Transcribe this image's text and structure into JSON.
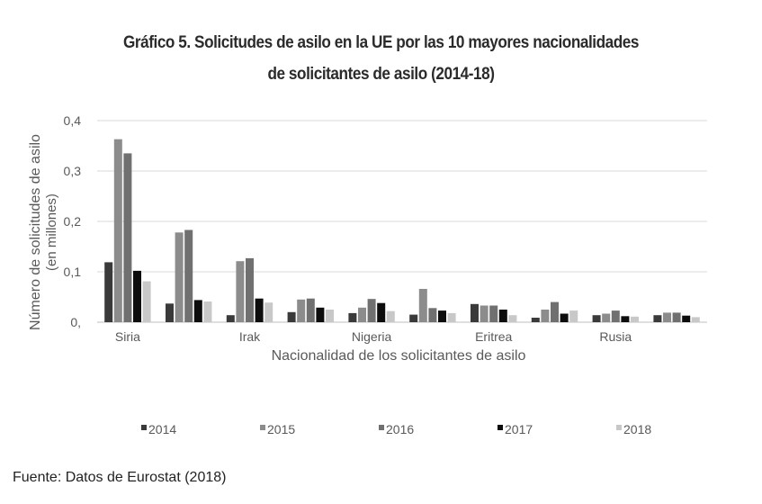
{
  "chart_data": {
    "type": "bar",
    "title_line1": "Gráfico 5. Solicitudes de asilo en la UE por las 10 mayores nacionalidades",
    "title_line2": "de solicitantes de asilo (2014-18)",
    "xlabel": "Nacionalidad de los solicitantes de asilo",
    "ylabel_line1": "Número de solicitudes de asilo",
    "ylabel_line2": "(en millones)",
    "ylim": [
      0,
      0.4
    ],
    "yticks": [
      {
        "value": 0,
        "label": "0,"
      },
      {
        "value": 0.1,
        "label": "0,1"
      },
      {
        "value": 0.2,
        "label": "0,2"
      },
      {
        "value": 0.3,
        "label": "0,3"
      },
      {
        "value": 0.4,
        "label": "0,4"
      }
    ],
    "categories": [
      "Siria",
      "",
      "Irak",
      "",
      "Nigeria",
      "",
      "Eritrea",
      "",
      "Rusia",
      ""
    ],
    "series": [
      {
        "name": "2014",
        "color": "#3a3a3a",
        "values": [
          0.119,
          0.037,
          0.014,
          0.02,
          0.018,
          0.015,
          0.036,
          0.009,
          0.014,
          0.014
        ]
      },
      {
        "name": "2015",
        "color": "#8c8c8c",
        "values": [
          0.363,
          0.178,
          0.121,
          0.045,
          0.029,
          0.066,
          0.033,
          0.025,
          0.017,
          0.019
        ]
      },
      {
        "name": "2016",
        "color": "#707070",
        "values": [
          0.335,
          0.183,
          0.127,
          0.047,
          0.046,
          0.028,
          0.033,
          0.04,
          0.023,
          0.019
        ]
      },
      {
        "name": "2017",
        "color": "#0d0d0d",
        "values": [
          0.102,
          0.044,
          0.047,
          0.029,
          0.038,
          0.023,
          0.025,
          0.017,
          0.012,
          0.013
        ]
      },
      {
        "name": "2018",
        "color": "#c8c8c8",
        "values": [
          0.081,
          0.041,
          0.039,
          0.025,
          0.022,
          0.018,
          0.014,
          0.023,
          0.011,
          0.01
        ]
      }
    ],
    "grid": true,
    "legend_position": "bottom"
  },
  "source": "Fuente: Datos de Eurostat (2018)"
}
